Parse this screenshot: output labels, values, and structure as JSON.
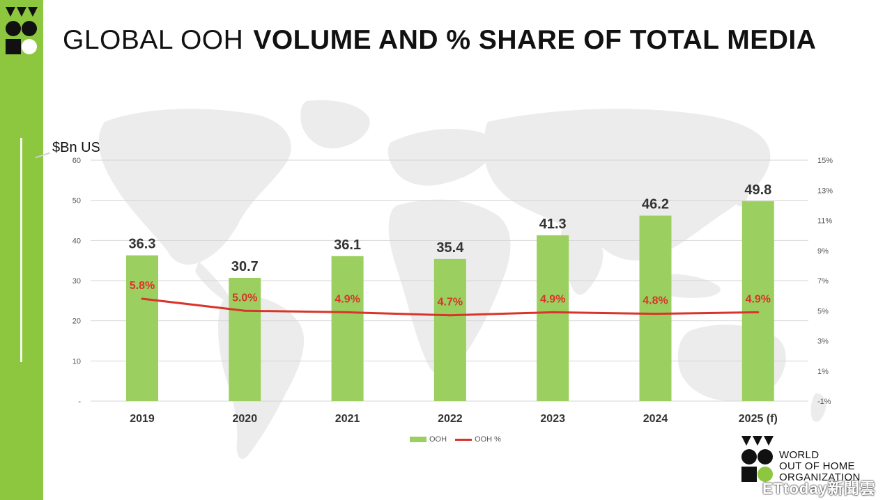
{
  "title": {
    "light": "GLOBAL OOH",
    "bold": "VOLUME AND % SHARE OF TOTAL MEDIA"
  },
  "unit_label": "$Bn USD",
  "colors": {
    "sidebar": "#8dc63f",
    "bar": "#9bcf5f",
    "line": "#d9342b",
    "map": "#ececec",
    "logo_dark": "#111111",
    "logo_accent": "#8dc63f"
  },
  "chart_data": {
    "type": "bar",
    "categories": [
      "2019",
      "2020",
      "2021",
      "2022",
      "2023",
      "2024",
      "2025 (f)"
    ],
    "series": [
      {
        "name": "OOH",
        "type": "bar",
        "axis": "left",
        "values": [
          36.3,
          30.7,
          36.1,
          35.4,
          41.3,
          46.2,
          49.8
        ],
        "labels": [
          "36.3",
          "30.7",
          "36.1",
          "35.4",
          "41.3",
          "46.2",
          "49.8"
        ]
      },
      {
        "name": "OOH %",
        "type": "line",
        "axis": "right",
        "values": [
          5.8,
          5.0,
          4.9,
          4.7,
          4.9,
          4.8,
          4.9
        ],
        "labels": [
          "5.8%",
          "5.0%",
          "4.9%",
          "4.7%",
          "4.9%",
          "4.8%",
          "4.9%"
        ]
      }
    ],
    "y_left": {
      "range": [
        0,
        60
      ],
      "ticks": [
        0,
        10,
        20,
        30,
        40,
        50,
        60
      ],
      "tick_labels": [
        "-",
        "10",
        "20",
        "30",
        "40",
        "50",
        "60"
      ]
    },
    "y_right": {
      "range": [
        -1,
        15
      ],
      "ticks": [
        -1,
        1,
        3,
        5,
        7,
        9,
        11,
        13,
        15
      ],
      "tick_labels": [
        "-1%",
        "1%",
        "3%",
        "5%",
        "7%",
        "9%",
        "11%",
        "13%",
        "15%"
      ]
    },
    "grid": true,
    "legend": {
      "position": "bottom",
      "entries": [
        "OOH",
        "OOH %"
      ]
    }
  },
  "org": {
    "line1": "WORLD",
    "line2": "OUT OF HOME",
    "line3": "ORGANIZATION"
  },
  "watermark": "ETtoday新聞雲"
}
